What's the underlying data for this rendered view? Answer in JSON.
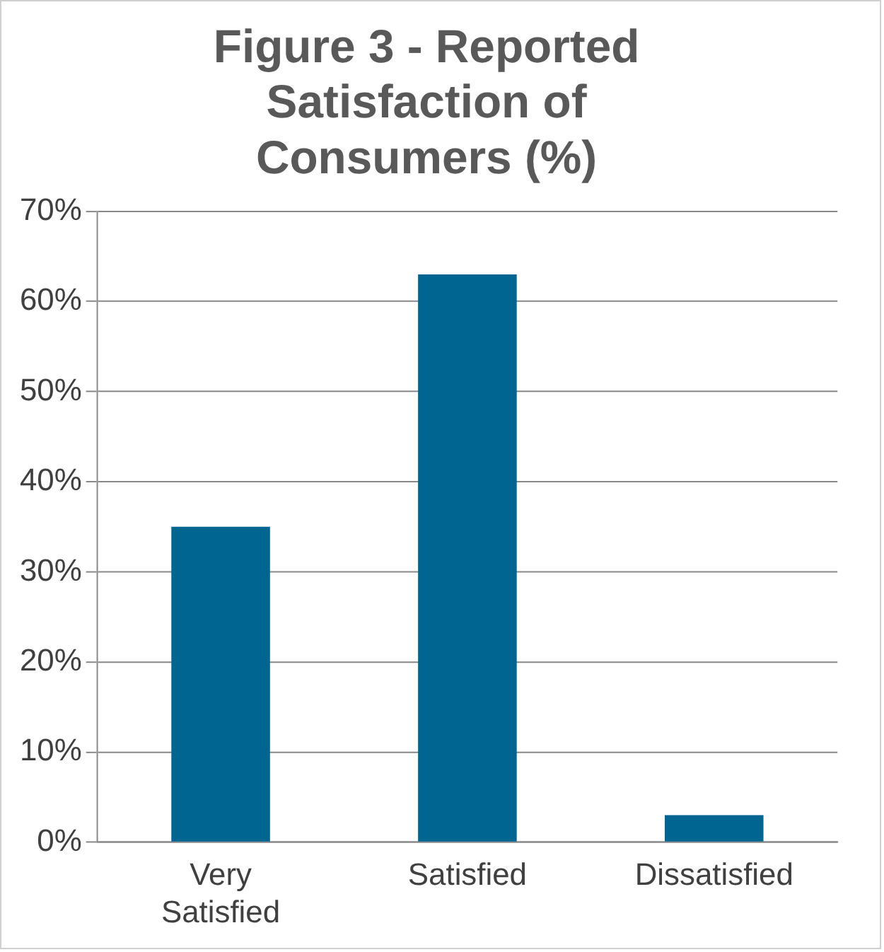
{
  "chart_data": {
    "type": "bar",
    "title": "Figure 3 - Reported Satisfaction of Consumers (%)",
    "categories": [
      "Very Satisfied",
      "Satisfied",
      "Dissatisfied"
    ],
    "values": [
      35,
      63,
      3
    ],
    "color": "#006591",
    "ylim": [
      0,
      70
    ],
    "yticks": [
      {
        "value": 0,
        "label": "0%"
      },
      {
        "value": 10,
        "label": "10%"
      },
      {
        "value": 20,
        "label": "20%"
      },
      {
        "value": 30,
        "label": "30%"
      },
      {
        "value": 40,
        "label": "40%"
      },
      {
        "value": 50,
        "label": "50%"
      },
      {
        "value": 60,
        "label": "60%"
      },
      {
        "value": 70,
        "label": "70%"
      }
    ],
    "grid": "y",
    "legend": false
  }
}
